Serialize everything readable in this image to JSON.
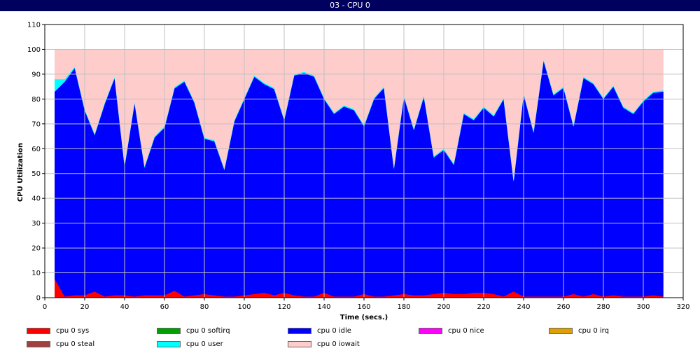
{
  "window": {
    "title": "03 - CPU 0"
  },
  "chart_data": {
    "type": "area",
    "title": "",
    "xlabel": "Time (secs.)",
    "ylabel": "CPU Utilization",
    "xlim": [
      0,
      320
    ],
    "ylim": [
      0,
      110
    ],
    "xticks": [
      0,
      20,
      40,
      60,
      80,
      100,
      120,
      140,
      160,
      180,
      200,
      220,
      240,
      260,
      280,
      300,
      320
    ],
    "yticks": [
      0,
      10,
      20,
      30,
      40,
      50,
      60,
      70,
      80,
      90,
      100,
      110
    ],
    "grid": true,
    "stacked": true,
    "legend_position": "bottom",
    "x": [
      5,
      10,
      15,
      20,
      25,
      30,
      35,
      40,
      45,
      50,
      55,
      60,
      65,
      70,
      75,
      80,
      85,
      90,
      95,
      100,
      105,
      110,
      115,
      120,
      125,
      130,
      135,
      140,
      145,
      150,
      155,
      160,
      165,
      170,
      175,
      180,
      185,
      190,
      195,
      200,
      205,
      210,
      215,
      220,
      225,
      230,
      235,
      240,
      245,
      250,
      255,
      260,
      265,
      270,
      275,
      280,
      285,
      290,
      295,
      300,
      305,
      310
    ],
    "series": [
      {
        "name": "cpu 0 sys",
        "color": "#ff0000",
        "values": [
          7.5,
          0.5,
          1,
          1,
          2.5,
          0.5,
          1,
          1,
          0.5,
          1,
          1,
          1,
          2.8,
          0.5,
          1,
          1.5,
          1,
          0.5,
          0.5,
          1,
          1.5,
          2,
          1,
          2,
          1,
          0.5,
          0.5,
          2,
          0.5,
          0.5,
          0.5,
          1.5,
          0.5,
          0.5,
          1,
          1.5,
          1,
          1,
          1.5,
          2,
          1.5,
          1.5,
          2,
          2,
          1.5,
          0.5,
          2.5,
          0.5,
          0.5,
          0.5,
          0.5,
          0.5,
          1.5,
          0.5,
          1.5,
          0.5,
          1,
          0.5,
          0.5,
          0.5,
          1,
          0.5
        ]
      },
      {
        "name": "cpu 0 softirq",
        "color": "#00a000",
        "values": [
          0,
          0,
          0,
          0,
          0,
          0,
          0,
          0,
          0,
          0,
          0,
          0,
          0,
          0,
          0,
          0,
          0,
          0,
          0,
          0,
          0,
          0,
          0,
          0,
          0,
          0,
          0,
          0,
          0,
          0,
          0,
          0,
          0,
          0,
          0,
          0,
          0,
          0,
          0,
          0,
          0,
          0,
          0,
          0,
          0,
          0,
          0,
          0,
          0,
          0,
          0,
          0,
          0,
          0,
          0,
          0,
          0,
          0,
          0,
          0,
          0,
          0
        ]
      },
      {
        "name": "cpu 0 idle",
        "color": "#0000ff",
        "values": [
          75.5,
          86.5,
          91.5,
          74.5,
          63,
          77.5,
          87.5,
          52,
          78,
          51.5,
          63.5,
          67.5,
          81.5,
          86.5,
          77.5,
          62.5,
          62,
          51,
          70.5,
          79,
          87.5,
          84,
          83,
          69.5,
          88.5,
          90,
          88.5,
          78,
          73.5,
          76.5,
          75,
          67.5,
          79.5,
          84,
          51,
          79.5,
          66.5,
          80,
          55,
          57.5,
          52,
          72.5,
          69.5,
          74.5,
          71.5,
          79.5,
          44.5,
          81.5,
          66,
          95,
          81,
          84,
          67.5,
          88,
          84.5,
          79.5,
          84,
          76,
          73.5,
          78.5,
          81.5,
          82.5
        ]
      },
      {
        "name": "cpu 0 nice",
        "color": "#ff00ff",
        "values": [
          0,
          0,
          0,
          0,
          0,
          0,
          0,
          0,
          0,
          0,
          0,
          0,
          0,
          0,
          0,
          0,
          0,
          0,
          0,
          0,
          0,
          0,
          0,
          0,
          0,
          0,
          0,
          0,
          0,
          0,
          0,
          0,
          0,
          0,
          0,
          0,
          0,
          0,
          0,
          0,
          0,
          0,
          0,
          0,
          0,
          0,
          0,
          0,
          0,
          0,
          0,
          0,
          0,
          0,
          0,
          0,
          0,
          0,
          0,
          0,
          0,
          0
        ]
      },
      {
        "name": "cpu 0 irq",
        "color": "#e0a000",
        "values": [
          0,
          0,
          0,
          0,
          0,
          0,
          0,
          0,
          0,
          0,
          0,
          0,
          0,
          0,
          0,
          0,
          0,
          0,
          0,
          0,
          0,
          0,
          0,
          0,
          0,
          0,
          0,
          0,
          0,
          0,
          0,
          0,
          0,
          0,
          0,
          0,
          0,
          0,
          0,
          0,
          0,
          0,
          0,
          0,
          0,
          0,
          0,
          0,
          0,
          0,
          0,
          0,
          0,
          0,
          0,
          0,
          0,
          0,
          0,
          0,
          0,
          0
        ]
      },
      {
        "name": "cpu 0 steal",
        "color": "#a04040",
        "values": [
          0,
          0,
          0,
          0,
          0,
          0,
          0,
          0,
          0,
          0,
          0,
          0,
          0,
          0,
          0,
          0,
          0,
          0,
          0,
          0,
          0,
          0,
          0,
          0,
          0,
          0,
          0,
          0,
          0,
          0,
          0,
          0,
          0,
          0,
          0,
          0,
          0,
          0,
          0,
          0,
          0,
          0,
          0,
          0,
          0,
          0,
          0,
          0,
          0,
          0,
          0,
          0,
          0,
          0,
          0,
          0,
          0,
          0,
          0,
          0,
          0,
          0
        ]
      },
      {
        "name": "cpu 0 user",
        "color": "#00ffff",
        "values": [
          5,
          1,
          0.5,
          0.5,
          0.5,
          0.5,
          0.5,
          0.5,
          0.5,
          0.5,
          0.5,
          0.5,
          0.5,
          0.5,
          0.5,
          0.5,
          0.5,
          0.5,
          0.5,
          0.5,
          0.5,
          0.5,
          0.5,
          0.5,
          0.5,
          0.5,
          0.5,
          0.5,
          0.5,
          0.5,
          0.5,
          0.5,
          0.5,
          0.5,
          0.5,
          0.5,
          0.5,
          0.5,
          0.5,
          0.5,
          0.5,
          0.5,
          0.5,
          0.5,
          0.5,
          0.5,
          0.5,
          0.5,
          0.5,
          0.5,
          0.5,
          0.5,
          0.5,
          0.5,
          0.5,
          0.5,
          0.5,
          0.5,
          0.5,
          0.5,
          0.5,
          0.5
        ]
      },
      {
        "name": "cpu 0 iowait",
        "color": "#ffcccc",
        "values": [
          12,
          12,
          7,
          24,
          34,
          21.5,
          11,
          46.5,
          21,
          47,
          35,
          31,
          15.2,
          12.5,
          21,
          35.5,
          36.5,
          48,
          28.5,
          19.5,
          10.5,
          13.5,
          15.5,
          28,
          10,
          9,
          10.5,
          19.5,
          25.5,
          22.5,
          24,
          30.5,
          19.5,
          15,
          47.5,
          18.5,
          32,
          18.5,
          43,
          40,
          46,
          25.5,
          28,
          23,
          26.5,
          19.5,
          52.5,
          17.5,
          33,
          4,
          18,
          15,
          30.5,
          11,
          13.5,
          19.5,
          14.5,
          23,
          25.5,
          20.5,
          17,
          16.5
        ]
      }
    ]
  }
}
